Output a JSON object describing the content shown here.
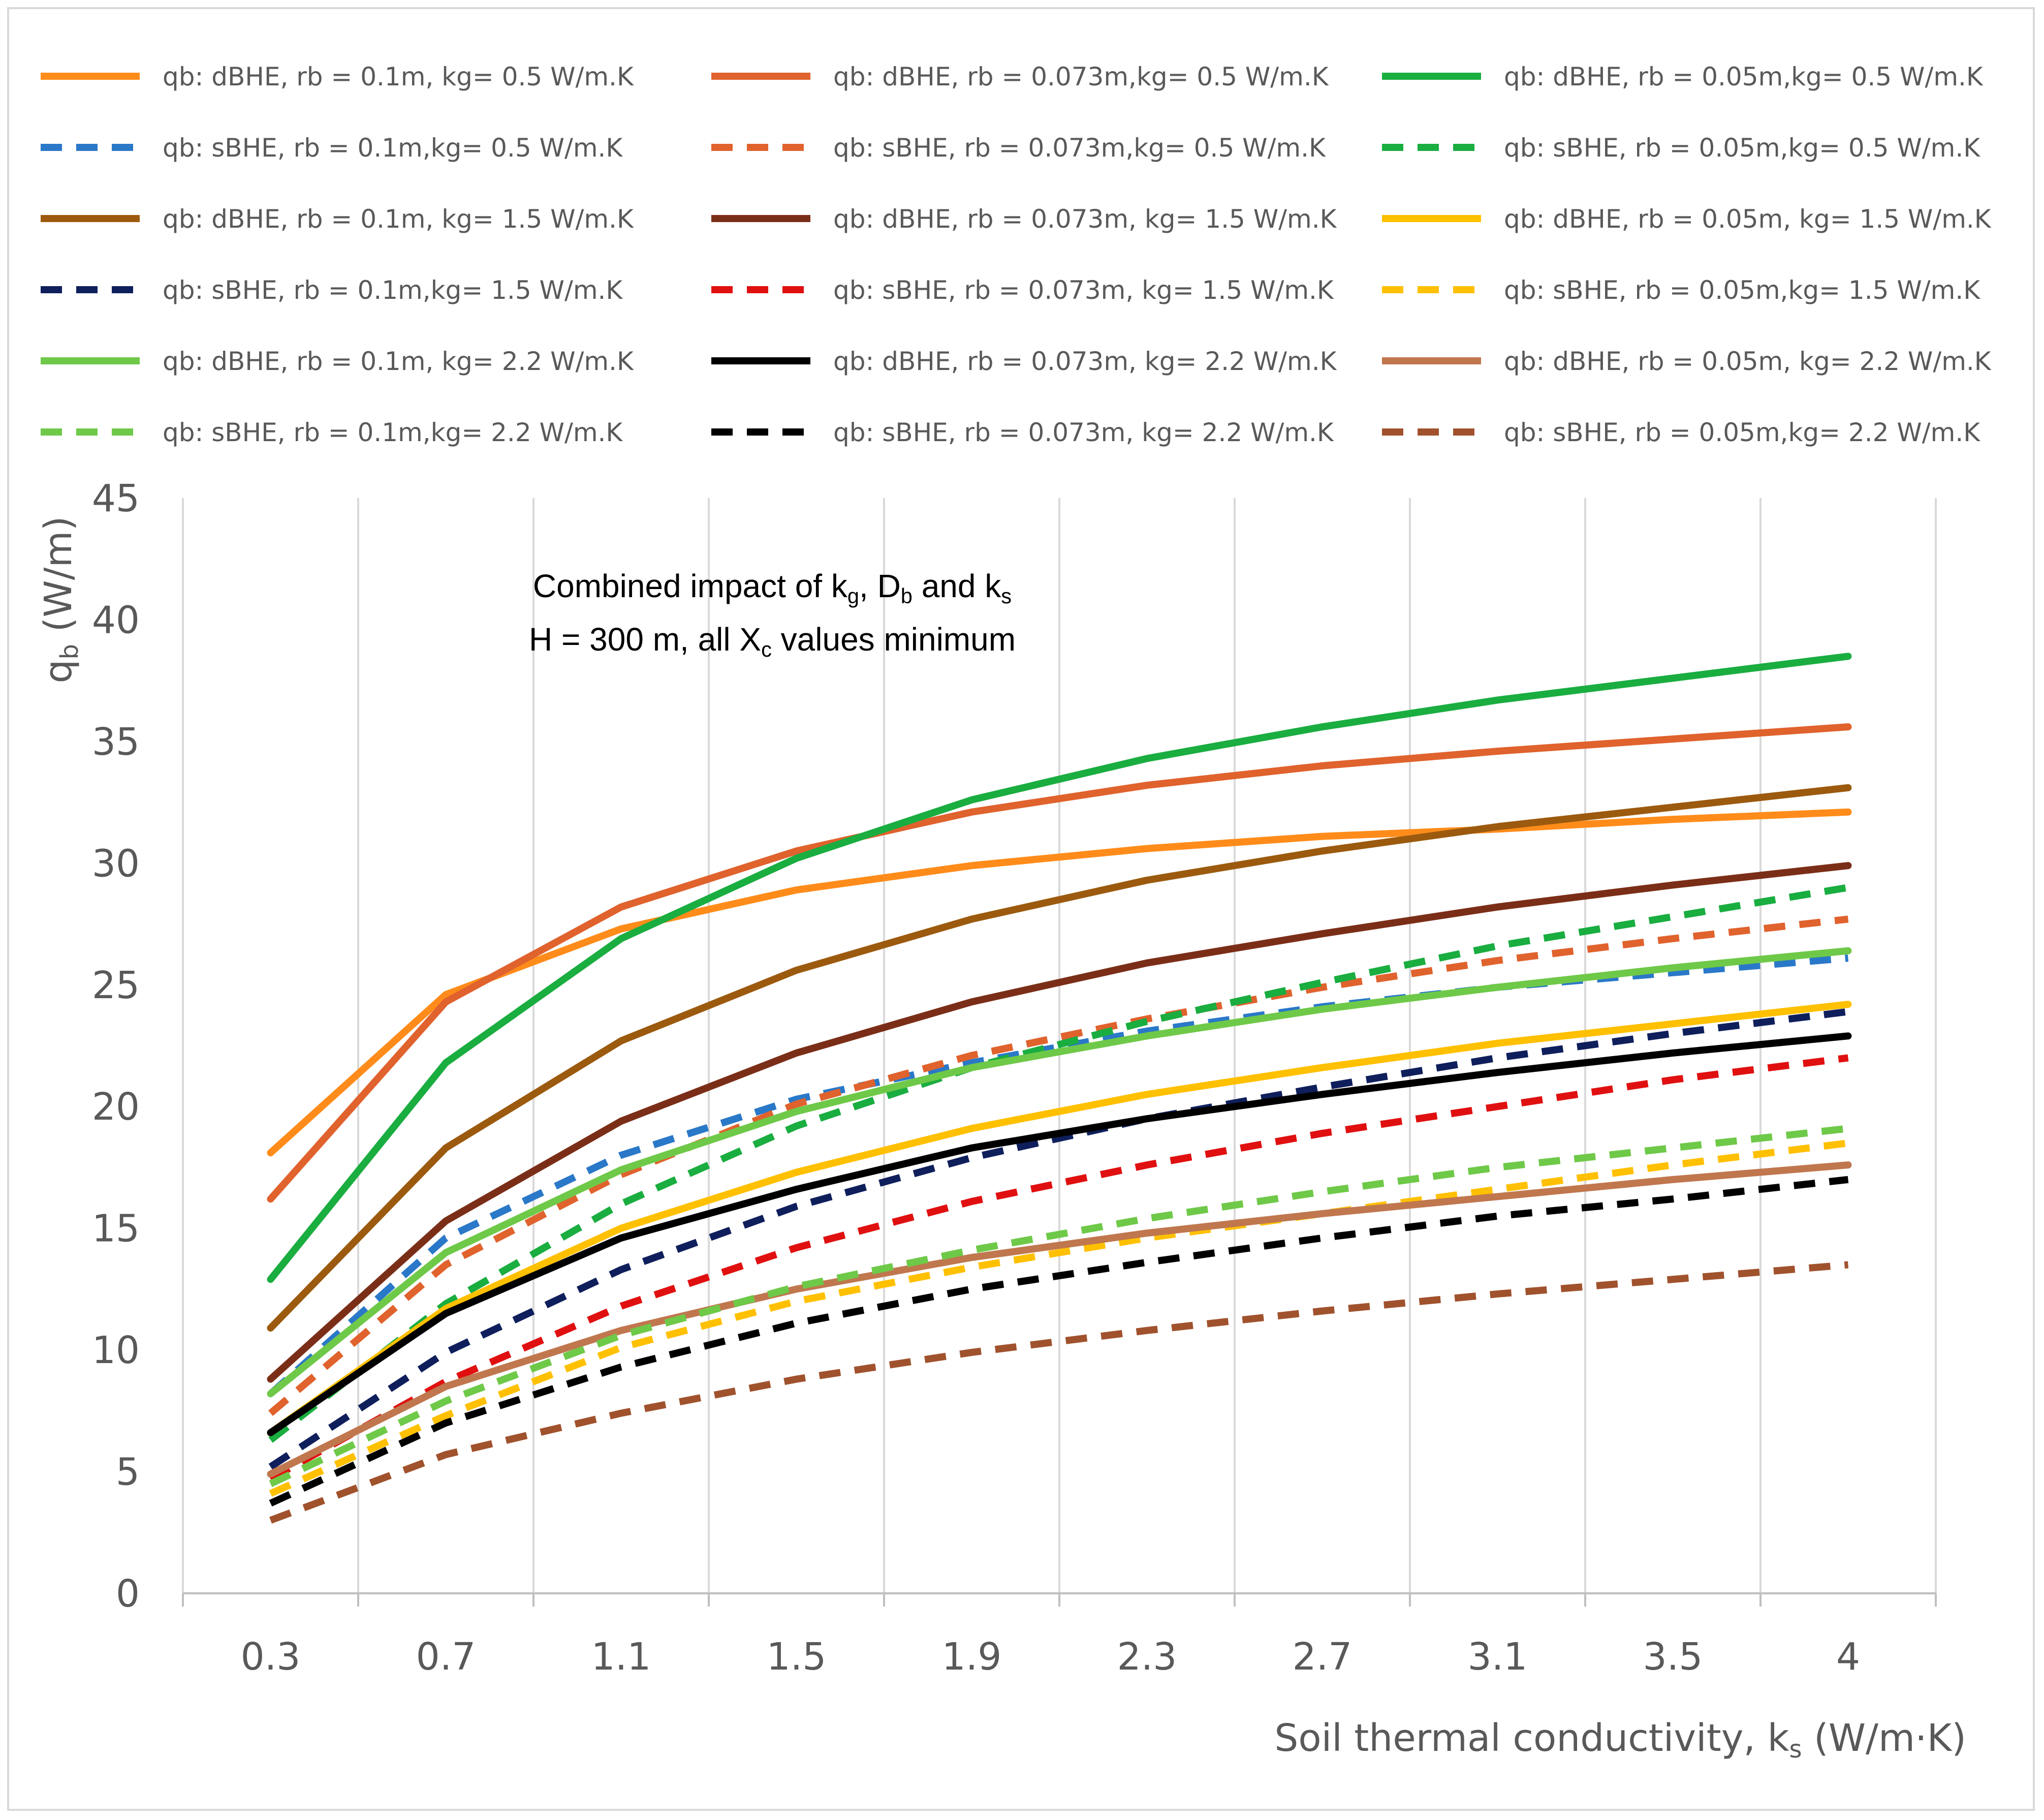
{
  "chart_data": {
    "type": "line",
    "title": "",
    "annotation": {
      "line1": [
        "Combined impact of k",
        "g",
        ", D",
        "b",
        " and k",
        "s"
      ],
      "line2": [
        "H = 300 m, all X",
        "c",
        " values minimum"
      ]
    },
    "xlabel": [
      "Soil thermal conductivity, k",
      "s",
      " (W/m·K)"
    ],
    "ylabel": [
      "q",
      "b",
      " (W/m)"
    ],
    "categories": [
      "0.3",
      "0.7",
      "1.1",
      "1.5",
      "1.9",
      "2.3",
      "2.7",
      "3.1",
      "3.5",
      "4"
    ],
    "ylim": [
      0,
      45
    ],
    "yticks": [
      "0",
      "5",
      "10",
      "15",
      "20",
      "25",
      "30",
      "35",
      "40",
      "45"
    ],
    "grid": "vertical",
    "legend_position": "top",
    "series": [
      {
        "name": "qb: dBHE, rb = 0.1m, kg= 0.5 W/m.K",
        "color": "#ff8c1a",
        "dash": "solid",
        "values": [
          18.1,
          24.6,
          27.3,
          28.9,
          29.9,
          30.6,
          31.1,
          31.4,
          31.8,
          32.1
        ]
      },
      {
        "name": "qb: dBHE, rb = 0.073m,kg= 0.5 W/m.K",
        "color": "#e0622d",
        "dash": "solid",
        "values": [
          16.2,
          24.3,
          28.2,
          30.5,
          32.1,
          33.2,
          34.0,
          34.6,
          35.1,
          35.6
        ]
      },
      {
        "name": "qb: dBHE, rb = 0.05m,kg= 0.5 W/m.K",
        "color": "#1aad40",
        "dash": "solid",
        "values": [
          12.9,
          21.8,
          26.9,
          30.2,
          32.6,
          34.3,
          35.6,
          36.7,
          37.6,
          38.5
        ]
      },
      {
        "name": "qb: sBHE, rb = 0.1m,kg= 0.5 W/m.K",
        "color": "#2a78c8",
        "dash": "dashed",
        "values": [
          8.2,
          14.6,
          18.0,
          20.3,
          21.8,
          23.1,
          24.1,
          24.9,
          25.5,
          26.1
        ]
      },
      {
        "name": "qb: sBHE, rb = 0.073m,kg= 0.5 W/m.K",
        "color": "#e0622d",
        "dash": "dashed",
        "values": [
          7.4,
          13.5,
          17.2,
          20.1,
          22.1,
          23.6,
          24.9,
          26.0,
          26.9,
          27.7
        ]
      },
      {
        "name": "qb: sBHE, rb = 0.05m,kg= 0.5 W/m.K",
        "color": "#1aad40",
        "dash": "dashed",
        "values": [
          6.3,
          11.9,
          16.0,
          19.2,
          21.6,
          23.5,
          25.1,
          26.6,
          27.8,
          29.0
        ]
      },
      {
        "name": "qb: dBHE, rb = 0.1m, kg= 1.5 W/m.K",
        "color": "#9c5a0e",
        "dash": "solid",
        "values": [
          10.9,
          18.3,
          22.7,
          25.6,
          27.7,
          29.3,
          30.5,
          31.5,
          32.3,
          33.1
        ]
      },
      {
        "name": "qb: dBHE, rb = 0.073m, kg= 1.5 W/m.K",
        "color": "#7b2e17",
        "dash": "solid",
        "values": [
          8.8,
          15.3,
          19.4,
          22.2,
          24.3,
          25.9,
          27.1,
          28.2,
          29.1,
          29.9
        ]
      },
      {
        "name": "qb: dBHE, rb = 0.05m, kg= 1.5 W/m.K",
        "color": "#ffc000",
        "dash": "solid",
        "values": [
          6.6,
          11.7,
          15.0,
          17.3,
          19.1,
          20.5,
          21.6,
          22.6,
          23.4,
          24.2
        ]
      },
      {
        "name": "qb: sBHE, rb = 0.1m,kg= 1.5 W/m.K",
        "color": "#0f1f5c",
        "dash": "dashed",
        "values": [
          5.2,
          9.9,
          13.3,
          15.9,
          17.9,
          19.5,
          20.8,
          22.0,
          23.0,
          23.9
        ]
      },
      {
        "name": "qb: sBHE, rb = 0.073m, kg= 1.5 W/m.K",
        "color": "#e01010",
        "dash": "dashed",
        "values": [
          4.7,
          8.7,
          11.8,
          14.2,
          16.1,
          17.6,
          18.9,
          20.0,
          21.1,
          22.0
        ]
      },
      {
        "name": "qb: sBHE, rb = 0.05m,kg= 1.5 W/m.K",
        "color": "#ffc000",
        "dash": "dashed",
        "values": [
          4.1,
          7.3,
          10.1,
          12.0,
          13.4,
          14.6,
          15.6,
          16.6,
          17.6,
          18.5
        ]
      },
      {
        "name": "qb: dBHE, rb = 0.1m, kg= 2.2 W/m.K",
        "color": "#6ec948",
        "dash": "solid",
        "values": [
          8.2,
          14.0,
          17.4,
          19.8,
          21.6,
          22.9,
          24.0,
          24.9,
          25.7,
          26.4
        ]
      },
      {
        "name": "qb: dBHE, rb = 0.073m, kg= 2.2 W/m.K",
        "color": "#000000",
        "dash": "solid",
        "values": [
          6.6,
          11.5,
          14.6,
          16.6,
          18.3,
          19.5,
          20.5,
          21.4,
          22.2,
          22.9
        ]
      },
      {
        "name": "qb: dBHE, rb = 0.05m, kg= 2.2 W/m.K",
        "color": "#c0774e",
        "dash": "solid",
        "values": [
          4.9,
          8.5,
          10.8,
          12.5,
          13.8,
          14.8,
          15.6,
          16.3,
          17.0,
          17.6
        ]
      },
      {
        "name": "qb: sBHE, rb = 0.1m,kg= 2.2 W/m.K",
        "color": "#6ec948",
        "dash": "dashed",
        "values": [
          4.5,
          7.9,
          10.6,
          12.6,
          14.1,
          15.4,
          16.5,
          17.5,
          18.3,
          19.1
        ]
      },
      {
        "name": "qb: sBHE, rb = 0.073m, kg= 2.2 W/m.K",
        "color": "#000000",
        "dash": "dashed",
        "values": [
          3.7,
          7.0,
          9.3,
          11.1,
          12.5,
          13.6,
          14.6,
          15.5,
          16.2,
          17.0
        ]
      },
      {
        "name": "qb: sBHE, rb = 0.05m,kg= 2.2 W/m.K",
        "color": "#a0522d",
        "dash": "dashed",
        "values": [
          3.0,
          5.7,
          7.4,
          8.8,
          9.9,
          10.8,
          11.6,
          12.3,
          12.9,
          13.5
        ]
      }
    ]
  }
}
